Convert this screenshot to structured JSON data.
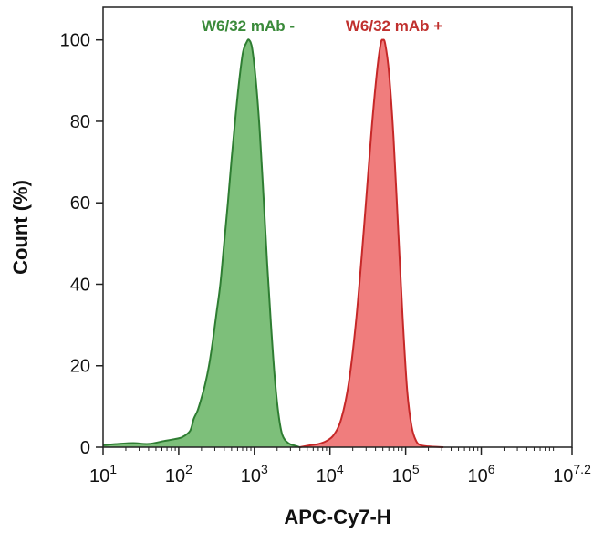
{
  "chart_data": {
    "type": "area",
    "title": "",
    "xlabel": "APC-Cy7-H",
    "ylabel": "Count (%)",
    "x_scale": "log10",
    "xlim": [
      1,
      7.2
    ],
    "ylim": [
      0,
      108
    ],
    "x_ticks": [
      {
        "value": 1,
        "base": "10",
        "exp": "1"
      },
      {
        "value": 2,
        "base": "10",
        "exp": "2"
      },
      {
        "value": 3,
        "base": "10",
        "exp": "3"
      },
      {
        "value": 4,
        "base": "10",
        "exp": "4"
      },
      {
        "value": 5,
        "base": "10",
        "exp": "5"
      },
      {
        "value": 6,
        "base": "10",
        "exp": "6"
      },
      {
        "value": 7.2,
        "base": "10",
        "exp": "7.2"
      }
    ],
    "y_ticks": [
      {
        "value": 0,
        "label": "0"
      },
      {
        "value": 20,
        "label": "20"
      },
      {
        "value": 40,
        "label": "40"
      },
      {
        "value": 60,
        "label": "60"
      },
      {
        "value": 80,
        "label": "80"
      },
      {
        "value": 100,
        "label": "100"
      }
    ],
    "grid": false,
    "series": [
      {
        "name": "W6/32 mAb -",
        "line_color": "#2e7d32",
        "fill_color": "#7dbf7a",
        "label_color": "#3a8a3a",
        "points": [
          [
            1.0,
            0.5
          ],
          [
            1.2,
            0.8
          ],
          [
            1.4,
            1.0
          ],
          [
            1.6,
            0.8
          ],
          [
            1.8,
            1.5
          ],
          [
            1.95,
            2.0
          ],
          [
            2.05,
            2.5
          ],
          [
            2.15,
            4.0
          ],
          [
            2.2,
            7.0
          ],
          [
            2.25,
            9.0
          ],
          [
            2.3,
            12.0
          ],
          [
            2.35,
            15.5
          ],
          [
            2.4,
            20.0
          ],
          [
            2.45,
            26.0
          ],
          [
            2.5,
            33.0
          ],
          [
            2.55,
            40.0
          ],
          [
            2.6,
            50.0
          ],
          [
            2.65,
            60.0
          ],
          [
            2.7,
            71.0
          ],
          [
            2.75,
            81.0
          ],
          [
            2.8,
            90.0
          ],
          [
            2.85,
            97.0
          ],
          [
            2.9,
            99.5
          ],
          [
            2.93,
            100.0
          ],
          [
            2.97,
            98.0
          ],
          [
            3.02,
            90.0
          ],
          [
            3.07,
            78.0
          ],
          [
            3.12,
            62.0
          ],
          [
            3.17,
            45.0
          ],
          [
            3.22,
            30.0
          ],
          [
            3.27,
            17.0
          ],
          [
            3.32,
            8.0
          ],
          [
            3.37,
            3.0
          ],
          [
            3.45,
            1.0
          ],
          [
            3.55,
            0.3
          ],
          [
            3.6,
            0.0
          ]
        ]
      },
      {
        "name": "W6/32 mAb +",
        "line_color": "#c62828",
        "fill_color": "#f07d7d",
        "label_color": "#c0302e",
        "points": [
          [
            3.6,
            0.0
          ],
          [
            3.75,
            0.5
          ],
          [
            3.85,
            0.8
          ],
          [
            3.95,
            1.5
          ],
          [
            4.05,
            3.0
          ],
          [
            4.15,
            7.0
          ],
          [
            4.25,
            16.0
          ],
          [
            4.35,
            32.0
          ],
          [
            4.45,
            54.0
          ],
          [
            4.55,
            78.0
          ],
          [
            4.62,
            92.0
          ],
          [
            4.67,
            99.0
          ],
          [
            4.7,
            100.0
          ],
          [
            4.73,
            99.0
          ],
          [
            4.78,
            92.0
          ],
          [
            4.84,
            76.0
          ],
          [
            4.9,
            54.0
          ],
          [
            4.96,
            32.0
          ],
          [
            5.02,
            14.0
          ],
          [
            5.08,
            5.0
          ],
          [
            5.14,
            1.5
          ],
          [
            5.2,
            0.5
          ],
          [
            5.3,
            0.2
          ],
          [
            5.5,
            0.0
          ]
        ]
      }
    ]
  }
}
